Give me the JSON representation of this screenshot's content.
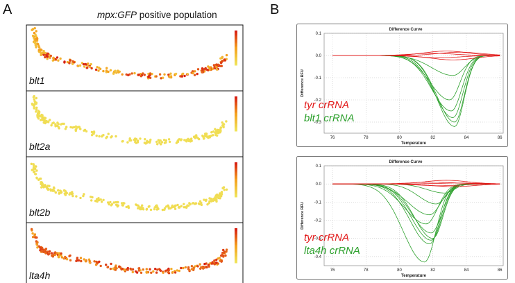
{
  "panels": {
    "a": "A",
    "b": "B"
  },
  "population_title": {
    "gene": "mpx:GFP",
    "rest": "positive population"
  },
  "chart_data": [
    {
      "type": "scatter",
      "title": "mpx:GFP positive population",
      "trajectory": {
        "x": [
          0.02,
          0.03,
          0.05,
          0.07,
          0.1,
          0.14,
          0.2,
          0.28,
          0.36,
          0.45,
          0.52,
          0.6,
          0.68,
          0.75,
          0.82,
          0.88,
          0.93,
          0.96,
          0.98
        ],
        "y": [
          0.95,
          0.78,
          0.6,
          0.52,
          0.47,
          0.43,
          0.38,
          0.32,
          0.25,
          0.18,
          0.14,
          0.12,
          0.12,
          0.14,
          0.18,
          0.22,
          0.28,
          0.35,
          0.5
        ]
      },
      "subplots": [
        {
          "label": "blt1",
          "colorbar": true,
          "expression_high": [
            0.2,
            0.25,
            0.3,
            0.35,
            0.4,
            0.55,
            0.6,
            0.65,
            0.72,
            0.78,
            0.83,
            0.88,
            0.92,
            0.95
          ],
          "level": 0.45
        },
        {
          "label": "blt2a",
          "colorbar": true,
          "expression_high": [],
          "level": 0.05
        },
        {
          "label": "blt2b",
          "colorbar": true,
          "expression_high": [],
          "level": 0.06
        },
        {
          "label": "lta4h",
          "colorbar": true,
          "expression_high": [
            0.15,
            0.2,
            0.25,
            0.35,
            0.45,
            0.55,
            0.65,
            0.75,
            0.85,
            0.9,
            0.95
          ],
          "level": 0.75
        }
      ]
    },
    {
      "type": "line",
      "title": "Difference Curve",
      "xlabel": "Temperature",
      "ylabel": "Difference RFU",
      "xlim": [
        75.5,
        86.2
      ],
      "ylim": [
        -0.35,
        0.1
      ],
      "xticks": [
        76,
        78,
        80,
        82,
        84,
        86
      ],
      "yticks": [
        0.1,
        0.0,
        -0.1,
        -0.2,
        -0.3
      ],
      "legend": [
        {
          "text": "tyr crRNA",
          "color": "#e21a1a"
        },
        {
          "text": "blt1 crRNA",
          "color": "#2ca02c"
        }
      ],
      "grid": true,
      "red_peaks": [
        0.01,
        -0.01,
        0.02,
        -0.02,
        0.015
      ],
      "green_curves": [
        {
          "center": 83.3,
          "width": 1.0,
          "depth": -0.32
        },
        {
          "center": 83.3,
          "width": 1.0,
          "depth": -0.3
        },
        {
          "center": 83.2,
          "width": 1.05,
          "depth": -0.28
        },
        {
          "center": 83.1,
          "width": 1.1,
          "depth": -0.25
        },
        {
          "center": 83.0,
          "width": 1.1,
          "depth": -0.2
        },
        {
          "center": 83.2,
          "width": 1.2,
          "depth": -0.09
        }
      ]
    },
    {
      "type": "line",
      "title": "Difference Curve",
      "xlabel": "Temperature",
      "ylabel": "Difference RFU",
      "xlim": [
        75.5,
        86.2
      ],
      "ylim": [
        -0.45,
        0.1
      ],
      "xticks": [
        76,
        78,
        80,
        82,
        84,
        86
      ],
      "yticks": [
        0.1,
        0.0,
        -0.1,
        -0.2,
        -0.3,
        -0.4
      ],
      "legend": [
        {
          "text": "tyr crRNA",
          "color": "#e21a1a"
        },
        {
          "text": "lta4h crRNA",
          "color": "#2ca02c"
        }
      ],
      "grid": true,
      "red_peaks": [
        0.01,
        -0.01,
        0.02,
        -0.015,
        0.005
      ],
      "green_curves": [
        {
          "center": 81.5,
          "width": 1.2,
          "depth": -0.43
        },
        {
          "center": 81.8,
          "width": 1.1,
          "depth": -0.33
        },
        {
          "center": 81.9,
          "width": 1.1,
          "depth": -0.31
        },
        {
          "center": 82.0,
          "width": 1.05,
          "depth": -0.3
        },
        {
          "center": 81.9,
          "width": 1.1,
          "depth": -0.27
        },
        {
          "center": 81.6,
          "width": 1.2,
          "depth": -0.22
        },
        {
          "center": 81.8,
          "width": 1.2,
          "depth": -0.17
        },
        {
          "center": 82.2,
          "width": 1.0,
          "depth": -0.11
        },
        {
          "center": 82.7,
          "width": 1.0,
          "depth": -0.05
        }
      ]
    }
  ]
}
